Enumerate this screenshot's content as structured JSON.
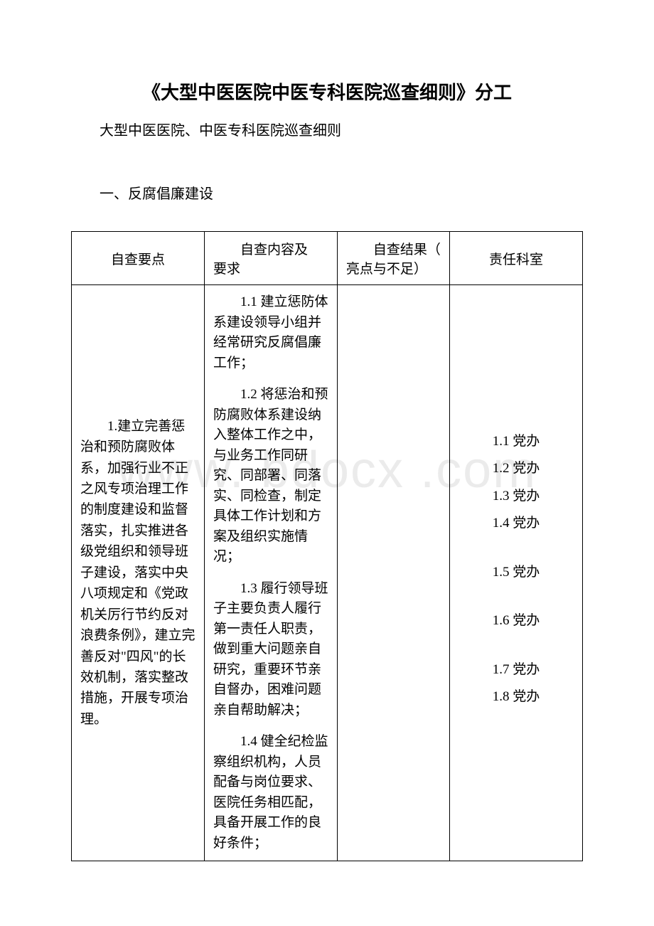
{
  "title": "《大型中医医院中医专科医院巡查细则》分工",
  "subtitle": "大型中医医院、中医专科医院巡查细则",
  "section_heading": "一、反腐倡廉建设",
  "watermark": "www. bdocx .com",
  "table": {
    "headers": {
      "c1": "自查要点",
      "c2_l1": "自查内容及",
      "c2_l2": "要求",
      "c3_l1": "自查结果（",
      "c3_l2": "亮点与不足）",
      "c4": "责任科室"
    },
    "row": {
      "points": "1.建立完善惩治和预防腐败体系，加强行业不正之风专项治理工作的制度建设和监督落实，扎实推进各级党组织和领导班子建设，落实中央八项规定和《党政机关厉行节约反对浪费条例》，建立完善反对\"四风\"的长效机制，落实整改措施，开展专项治理。",
      "content": [
        "1.1 建立惩防体系建设领导小组并经常研究反腐倡廉工作；",
        "1.2 将惩治和预防腐败体系建设纳入整体工作之中，与业务工作同研究、同部署、同落实、同检查，制定具体工作计划和方案及组织实施情况；",
        "1.3 履行领导班子主要负责人履行第一责任人职责，做到重大问题亲自研究，重要环节亲自督办，困难问题亲自帮助解决；",
        "1.4 健全纪检监察组织机构，人员配备与岗位要求、医院任务相匹配，具备开展工作的良好条件；"
      ],
      "result": "",
      "dept": [
        "1.1 党办",
        "1.2 党办",
        "1.3 党办",
        "1.4 党办",
        "1.5 党办",
        "1.6 党办",
        "1.7 党办",
        "1.8 党办"
      ]
    }
  }
}
